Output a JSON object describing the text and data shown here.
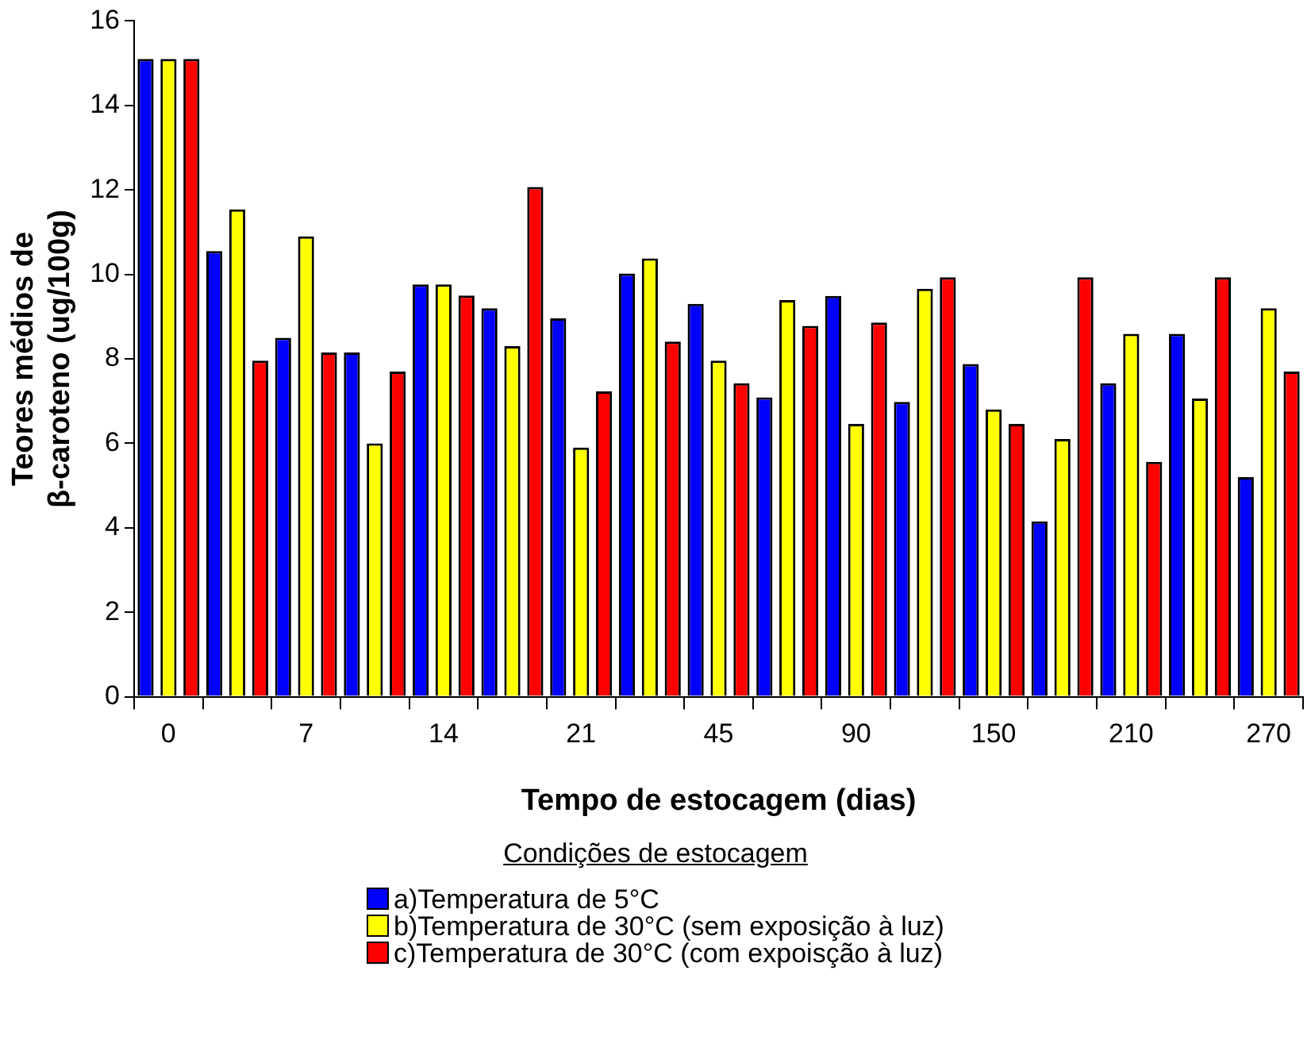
{
  "chart_data": {
    "type": "bar",
    "xlabel": "Tempo de estocagem (dias)",
    "ylabel": "Teores médios de β-caroteno (ug/100g)",
    "legend_title": "Condições de estocagem",
    "legend": "bottom",
    "grid": false,
    "categories": [
      "0",
      null,
      "7",
      null,
      "14",
      null,
      "21",
      null,
      "45",
      null,
      "90",
      null,
      "150",
      null,
      "210",
      null,
      "270"
    ],
    "ylim": [
      0,
      16
    ],
    "yticks": [
      0,
      2,
      4,
      6,
      8,
      10,
      12,
      14,
      16
    ],
    "series": [
      {
        "name": "a)Temperatura de 5°C",
        "color": "#0000ff",
        "values": [
          15.1,
          10.55,
          8.5,
          8.15,
          9.76,
          9.2,
          8.96,
          10.02,
          9.3,
          7.09,
          9.49,
          6.98,
          7.88,
          4.15,
          7.42,
          8.59,
          5.2
        ]
      },
      {
        "name": "b)Temperatura de 30°C (sem exposição à luz)",
        "color": "#ffff00",
        "values": [
          15.1,
          11.54,
          10.9,
          6.0,
          9.76,
          8.3,
          5.9,
          10.38,
          7.96,
          9.39,
          6.46,
          9.66,
          6.8,
          6.1,
          8.59,
          7.06,
          9.2
        ]
      },
      {
        "name": "c)Temperatura de 30°C (com expoisção à luz)",
        "color": "#ff0000",
        "values": [
          15.1,
          7.96,
          8.15,
          7.7,
          9.5,
          12.07,
          7.23,
          8.41,
          7.42,
          8.78,
          8.86,
          9.93,
          6.46,
          9.93,
          5.56,
          9.93,
          7.7
        ]
      }
    ]
  }
}
